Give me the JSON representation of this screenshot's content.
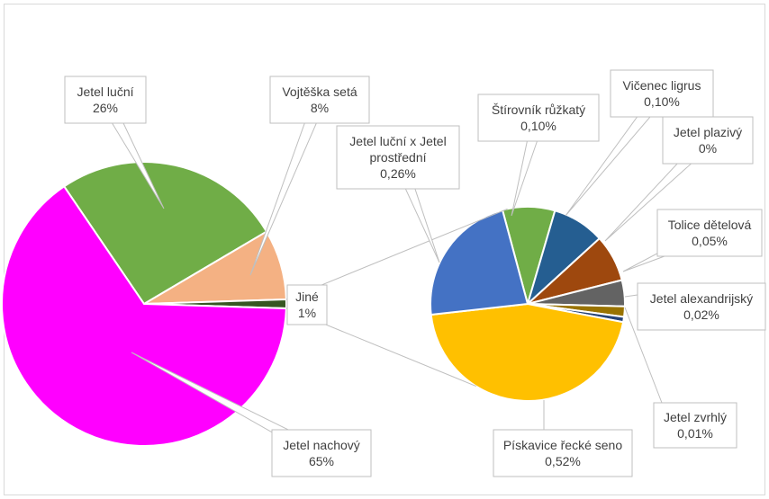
{
  "chart_data": {
    "type": "pie",
    "subtype": "pie-of-pie",
    "title": "",
    "main_pie": {
      "slices": [
        {
          "label": "Jetel luční",
          "value": 26,
          "display": "26%",
          "color": "#70ad47"
        },
        {
          "label": "Vojtěška setá",
          "value": 8,
          "display": "8%",
          "color": "#f4b183"
        },
        {
          "label": "Jiné",
          "value": 1,
          "display": "1%",
          "color": "#375623"
        },
        {
          "label": "Jetel nachový",
          "value": 65,
          "display": "65%",
          "color": "#ff00ff"
        }
      ]
    },
    "secondary_pie": {
      "slices": [
        {
          "label": "Štírovník růžkatý",
          "value": 0.1,
          "display": "0,10%",
          "color": "#70ad47"
        },
        {
          "label": "Vičenec ligrus",
          "value": 0.1,
          "display": "0,10%",
          "color": "#255e91"
        },
        {
          "label": "Jetel plazivý",
          "value": 0.09,
          "display": "0%",
          "color": "#9e480e"
        },
        {
          "label": "Tolice dětelová",
          "value": 0.05,
          "display": "0,05%",
          "color": "#636363"
        },
        {
          "label": "Jetel alexandrijský",
          "value": 0.02,
          "display": "0,02%",
          "color": "#997300"
        },
        {
          "label": "Jetel zvrhlý",
          "value": 0.01,
          "display": "0,01%",
          "color": "#264478"
        },
        {
          "label": "Pískavice řecké seno",
          "value": 0.52,
          "display": "0,52%",
          "color": "#ffc000"
        },
        {
          "label": "Jetel luční x Jetel prostřední",
          "value": 0.26,
          "display": "0,26%",
          "color": "#4472c4"
        }
      ]
    },
    "legend": "none",
    "label_style": "callout boxes with leader lines"
  }
}
